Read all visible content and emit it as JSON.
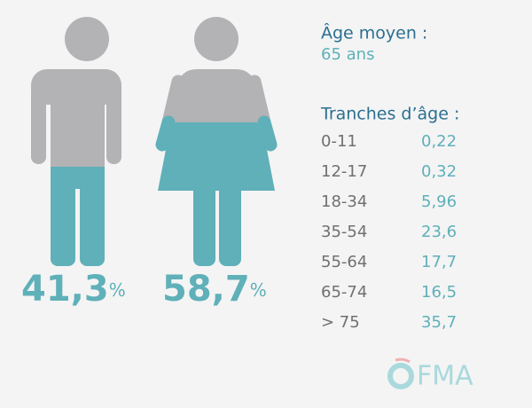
{
  "figures": [
    {
      "value": "41,3",
      "unit": "%"
    },
    {
      "value": "58,7",
      "unit": "%"
    }
  ],
  "average_age": {
    "title": "Âge moyen :",
    "value": "65 ans"
  },
  "age_brackets": {
    "title": "Tranches d’âge :",
    "rows": [
      [
        "0-11",
        "0,22"
      ],
      [
        "12-17",
        "0,32"
      ],
      [
        "18-34",
        "5,96"
      ],
      [
        "35-54",
        "23,6"
      ],
      [
        "55-64",
        "17,7"
      ],
      [
        "65-74",
        "16,5"
      ],
      [
        "> 75",
        "35,7"
      ]
    ]
  },
  "logo": "FMA"
}
